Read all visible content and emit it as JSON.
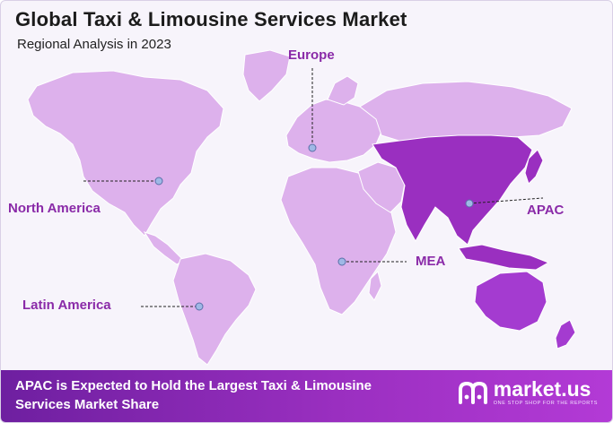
{
  "header": {
    "title": "Global Taxi & Limousine Services Market",
    "subtitle": "Regional Analysis in 2023"
  },
  "regions": {
    "europe": "Europe",
    "north_america": "North America",
    "apac": "APAC",
    "mea": "MEA",
    "latin_america": "Latin America"
  },
  "highlighted_region": "APAC",
  "colors": {
    "land": "#ddb1ec",
    "highlight_asia": "#9a2fc0",
    "highlight_australia": "#a43bd0",
    "label": "#8a2aa8",
    "banner": "#8a2ab8",
    "marker": "#9fb8e6"
  },
  "footer": {
    "headline": "APAC is Expected to Hold the Largest Taxi & Limousine Services Market Share",
    "logo_text": "market.us",
    "logo_tagline": "ONE STOP SHOP FOR THE REPORTS"
  }
}
